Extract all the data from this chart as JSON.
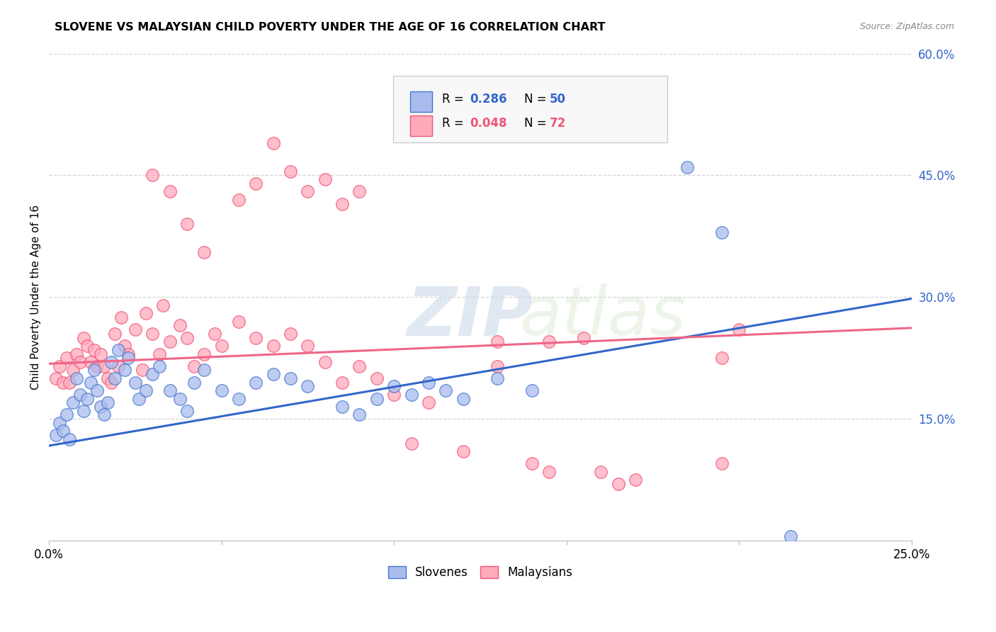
{
  "title": "SLOVENE VS MALAYSIAN CHILD POVERTY UNDER THE AGE OF 16 CORRELATION CHART",
  "source": "Source: ZipAtlas.com",
  "ylabel": "Child Poverty Under the Age of 16",
  "xlim": [
    0.0,
    0.25
  ],
  "ylim": [
    0.0,
    0.6
  ],
  "xtick_positions": [
    0.0,
    0.05,
    0.1,
    0.15,
    0.2,
    0.25
  ],
  "xticklabels": [
    "0.0%",
    "",
    "",
    "",
    "",
    "25.0%"
  ],
  "yticks_right": [
    0.15,
    0.3,
    0.45,
    0.6
  ],
  "yticks_right_labels": [
    "15.0%",
    "30.0%",
    "45.0%",
    "60.0%"
  ],
  "slovene_fill_color": "#AABBEE",
  "slovene_edge_color": "#4477CC",
  "malaysian_fill_color": "#FFAABB",
  "malaysian_edge_color": "#EE5577",
  "slovene_line_color": "#3366CC",
  "malaysian_line_color": "#EE6688",
  "legend_r_slovene": "R = 0.286",
  "legend_n_slovene": "N = 50",
  "legend_r_malaysian": "R = 0.048",
  "legend_n_malaysian": "N = 72",
  "watermark_zip": "ZIP",
  "watermark_atlas": "atlas",
  "background_color": "#ffffff",
  "grid_color": "#cccccc",
  "slovene_scatter": [
    [
      0.002,
      0.13
    ],
    [
      0.003,
      0.145
    ],
    [
      0.004,
      0.135
    ],
    [
      0.005,
      0.155
    ],
    [
      0.006,
      0.125
    ],
    [
      0.007,
      0.17
    ],
    [
      0.008,
      0.2
    ],
    [
      0.009,
      0.18
    ],
    [
      0.01,
      0.16
    ],
    [
      0.011,
      0.175
    ],
    [
      0.012,
      0.195
    ],
    [
      0.013,
      0.21
    ],
    [
      0.014,
      0.185
    ],
    [
      0.015,
      0.165
    ],
    [
      0.016,
      0.155
    ],
    [
      0.017,
      0.17
    ],
    [
      0.018,
      0.22
    ],
    [
      0.019,
      0.2
    ],
    [
      0.02,
      0.235
    ],
    [
      0.022,
      0.21
    ],
    [
      0.023,
      0.225
    ],
    [
      0.025,
      0.195
    ],
    [
      0.026,
      0.175
    ],
    [
      0.028,
      0.185
    ],
    [
      0.03,
      0.205
    ],
    [
      0.032,
      0.215
    ],
    [
      0.035,
      0.185
    ],
    [
      0.038,
      0.175
    ],
    [
      0.04,
      0.16
    ],
    [
      0.042,
      0.195
    ],
    [
      0.045,
      0.21
    ],
    [
      0.05,
      0.185
    ],
    [
      0.055,
      0.175
    ],
    [
      0.06,
      0.195
    ],
    [
      0.065,
      0.205
    ],
    [
      0.07,
      0.2
    ],
    [
      0.075,
      0.19
    ],
    [
      0.085,
      0.165
    ],
    [
      0.09,
      0.155
    ],
    [
      0.095,
      0.175
    ],
    [
      0.1,
      0.19
    ],
    [
      0.105,
      0.18
    ],
    [
      0.11,
      0.195
    ],
    [
      0.115,
      0.185
    ],
    [
      0.12,
      0.175
    ],
    [
      0.13,
      0.2
    ],
    [
      0.14,
      0.185
    ],
    [
      0.185,
      0.46
    ],
    [
      0.195,
      0.38
    ],
    [
      0.215,
      0.005
    ]
  ],
  "malaysian_scatter": [
    [
      0.002,
      0.2
    ],
    [
      0.003,
      0.215
    ],
    [
      0.004,
      0.195
    ],
    [
      0.005,
      0.225
    ],
    [
      0.006,
      0.195
    ],
    [
      0.007,
      0.21
    ],
    [
      0.008,
      0.23
    ],
    [
      0.009,
      0.22
    ],
    [
      0.01,
      0.25
    ],
    [
      0.011,
      0.24
    ],
    [
      0.012,
      0.22
    ],
    [
      0.013,
      0.235
    ],
    [
      0.014,
      0.215
    ],
    [
      0.015,
      0.23
    ],
    [
      0.016,
      0.215
    ],
    [
      0.017,
      0.2
    ],
    [
      0.018,
      0.195
    ],
    [
      0.019,
      0.255
    ],
    [
      0.02,
      0.215
    ],
    [
      0.021,
      0.275
    ],
    [
      0.022,
      0.24
    ],
    [
      0.023,
      0.23
    ],
    [
      0.025,
      0.26
    ],
    [
      0.027,
      0.21
    ],
    [
      0.028,
      0.28
    ],
    [
      0.03,
      0.255
    ],
    [
      0.032,
      0.23
    ],
    [
      0.033,
      0.29
    ],
    [
      0.035,
      0.245
    ],
    [
      0.038,
      0.265
    ],
    [
      0.04,
      0.25
    ],
    [
      0.042,
      0.215
    ],
    [
      0.045,
      0.23
    ],
    [
      0.048,
      0.255
    ],
    [
      0.05,
      0.24
    ],
    [
      0.055,
      0.27
    ],
    [
      0.06,
      0.25
    ],
    [
      0.065,
      0.24
    ],
    [
      0.055,
      0.42
    ],
    [
      0.06,
      0.44
    ],
    [
      0.065,
      0.49
    ],
    [
      0.07,
      0.455
    ],
    [
      0.075,
      0.43
    ],
    [
      0.08,
      0.445
    ],
    [
      0.085,
      0.415
    ],
    [
      0.09,
      0.43
    ],
    [
      0.03,
      0.45
    ],
    [
      0.035,
      0.43
    ],
    [
      0.04,
      0.39
    ],
    [
      0.045,
      0.355
    ],
    [
      0.13,
      0.245
    ],
    [
      0.145,
      0.245
    ],
    [
      0.155,
      0.25
    ],
    [
      0.13,
      0.215
    ],
    [
      0.14,
      0.095
    ],
    [
      0.145,
      0.085
    ],
    [
      0.1,
      0.18
    ],
    [
      0.095,
      0.2
    ],
    [
      0.11,
      0.17
    ],
    [
      0.12,
      0.11
    ],
    [
      0.105,
      0.12
    ],
    [
      0.09,
      0.215
    ],
    [
      0.085,
      0.195
    ],
    [
      0.07,
      0.255
    ],
    [
      0.075,
      0.24
    ],
    [
      0.08,
      0.22
    ],
    [
      0.16,
      0.085
    ],
    [
      0.165,
      0.07
    ],
    [
      0.17,
      0.075
    ],
    [
      0.195,
      0.225
    ],
    [
      0.2,
      0.26
    ],
    [
      0.195,
      0.095
    ]
  ]
}
